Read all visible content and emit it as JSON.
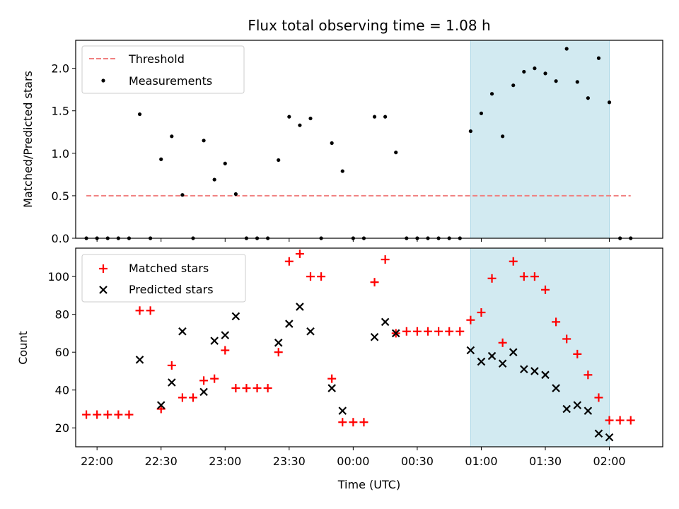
{
  "chart_data": {
    "type": "scatter",
    "title": "Flux total observing time = 1.08 h",
    "xlabel": "Time (UTC)",
    "x_tick_labels": [
      "22:00",
      "22:30",
      "23:00",
      "23:30",
      "00:00",
      "00:30",
      "01:00",
      "01:30",
      "02:00"
    ],
    "x_tick_minutes": [
      -120,
      -90,
      -60,
      -30,
      0,
      30,
      60,
      90,
      120
    ],
    "x_unit": "minutes relative to 00:00 UTC",
    "xlim_minutes": [
      -130,
      145
    ],
    "shaded_interval_minutes": [
      55,
      120
    ],
    "shade_color": "#add8e6",
    "panels": [
      {
        "ylabel": "Matched/Predicted stars",
        "ylim": [
          0,
          2.33
        ],
        "yticks": [
          0,
          0.5,
          1,
          1.5,
          2
        ],
        "ytick_labels": [
          "0.0",
          "0.5",
          "1.0",
          "1.5",
          "2.0"
        ],
        "legend_position": "top-left",
        "series": [
          {
            "name": "Threshold",
            "kind": "dashed-line",
            "color": "#f08080",
            "x": [
              -125,
              130
            ],
            "y": [
              0.5,
              0.5
            ]
          },
          {
            "name": "Measurements",
            "kind": "dot",
            "color": "#000000",
            "x": [
              -125,
              -120,
              -115,
              -110,
              -105,
              -100,
              -95,
              -90,
              -85,
              -80,
              -75,
              -70,
              -65,
              -60,
              -55,
              -50,
              -45,
              -40,
              -35,
              -30,
              -25,
              -20,
              -15,
              -10,
              -5,
              0,
              5,
              10,
              15,
              20,
              25,
              30,
              35,
              40,
              45,
              50,
              55,
              60,
              65,
              70,
              75,
              80,
              85,
              90,
              95,
              100,
              105,
              110,
              115,
              120,
              125,
              130
            ],
            "y": [
              0,
              0,
              0,
              0,
              0,
              1.46,
              0,
              0.93,
              1.2,
              0.51,
              0,
              1.15,
              0.69,
              0.88,
              0.52,
              0,
              0,
              0,
              0.92,
              1.43,
              1.33,
              1.41,
              0,
              1.12,
              0.79,
              0,
              0,
              1.43,
              1.43,
              1.01,
              0,
              0,
              0,
              0,
              0,
              0,
              1.26,
              1.47,
              1.7,
              1.2,
              1.8,
              1.96,
              2.0,
              1.94,
              1.85,
              2.23,
              1.84,
              1.65,
              2.12,
              1.6,
              0,
              0
            ]
          }
        ]
      },
      {
        "ylabel": "Count",
        "ylim": [
          10,
          115
        ],
        "yticks": [
          20,
          40,
          60,
          80,
          100
        ],
        "ytick_labels": [
          "20",
          "40",
          "60",
          "80",
          "100"
        ],
        "legend_position": "top-left",
        "series": [
          {
            "name": "Matched stars",
            "kind": "plus",
            "color": "#ff0000",
            "x": [
              -125,
              -120,
              -115,
              -110,
              -105,
              -100,
              -95,
              -90,
              -85,
              -80,
              -75,
              -70,
              -65,
              -60,
              -55,
              -50,
              -45,
              -40,
              -35,
              -30,
              -25,
              -20,
              -15,
              -10,
              -5,
              0,
              5,
              10,
              15,
              20,
              25,
              30,
              35,
              40,
              45,
              50,
              55,
              60,
              65,
              70,
              75,
              80,
              85,
              90,
              95,
              100,
              105,
              110,
              115,
              120,
              125,
              130
            ],
            "y": [
              27,
              27,
              27,
              27,
              27,
              82,
              82,
              30,
              53,
              36,
              36,
              45,
              46,
              61,
              41,
              41,
              41,
              41,
              60,
              108,
              112,
              100,
              100,
              46,
              23,
              23,
              23,
              97,
              109,
              70,
              71,
              71,
              71,
              71,
              71,
              71,
              77,
              81,
              99,
              65,
              108,
              100,
              100,
              93,
              76,
              67,
              59,
              48,
              36,
              24,
              24,
              24
            ]
          },
          {
            "name": "Predicted stars",
            "kind": "x",
            "color": "#000000",
            "x": [
              -100,
              -90,
              -85,
              -80,
              -70,
              -65,
              -60,
              -55,
              -35,
              -30,
              -25,
              -20,
              -10,
              -5,
              10,
              15,
              20,
              55,
              60,
              65,
              70,
              75,
              80,
              85,
              90,
              95,
              100,
              105,
              110,
              115,
              120
            ],
            "y": [
              56,
              32,
              44,
              71,
              39,
              66,
              69,
              79,
              65,
              75,
              84,
              71,
              41,
              29,
              68,
              76,
              70,
              61,
              55,
              58,
              54,
              60,
              51,
              50,
              48,
              41,
              30,
              32,
              29,
              17,
              15
            ]
          }
        ]
      }
    ]
  }
}
